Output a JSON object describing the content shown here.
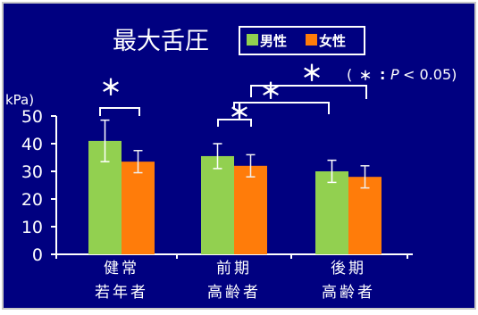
{
  "chart_data": {
    "type": "bar",
    "title": "最大舌圧",
    "ylabel": "kPa)",
    "ylim": [
      0,
      50
    ],
    "yticks": [
      "0",
      "10",
      "20",
      "30",
      "40",
      "50"
    ],
    "categories": [
      {
        "line1": "健常",
        "line2": "若年者"
      },
      {
        "line1": "前期",
        "line2": "高齢者"
      },
      {
        "line1": "後期",
        "line2": "高齢者"
      }
    ],
    "series": [
      {
        "name": "男性",
        "color": "#92d050",
        "values": [
          41,
          35.5,
          30
        ],
        "errors": [
          7.5,
          4.5,
          4
        ]
      },
      {
        "name": "女性",
        "color": "#ff7c0a",
        "values": [
          33.5,
          32,
          28
        ],
        "errors": [
          4,
          4,
          4
        ]
      }
    ],
    "significance": [
      {
        "label": "＊",
        "from": "健常若年者 男性",
        "to": "健常若年者 女性"
      },
      {
        "label": "＊",
        "from": "前期高齢者 男性",
        "to": "前期高齢者 女性"
      },
      {
        "label": "＊",
        "from": "前期高齢者",
        "to": "後期高齢者"
      }
    ],
    "annotation": {
      "open": "(",
      "star": "＊",
      "colon": ":",
      "p": "P",
      "rest": "< 0.05)"
    },
    "background": "#000080",
    "foreground": "#ffffff",
    "legend_position": "top"
  }
}
